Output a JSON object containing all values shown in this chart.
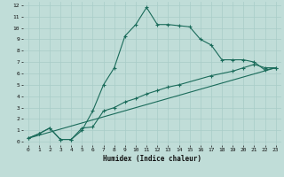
{
  "xlabel": "Humidex (Indice chaleur)",
  "bg_color": "#c0ddd8",
  "grid_color": "#a8ccc8",
  "line_color": "#1a6b5a",
  "xlim": [
    -0.5,
    23.5
  ],
  "ylim": [
    -0.3,
    12.3
  ],
  "xticks": [
    0,
    1,
    2,
    3,
    4,
    5,
    6,
    7,
    8,
    9,
    10,
    11,
    12,
    13,
    14,
    15,
    16,
    17,
    18,
    19,
    20,
    21,
    22,
    23
  ],
  "yticks": [
    0,
    1,
    2,
    3,
    4,
    5,
    6,
    7,
    8,
    9,
    10,
    11,
    12
  ],
  "curve1_x": [
    0,
    1,
    2,
    3,
    4,
    5,
    6,
    7,
    8,
    9,
    10,
    11,
    12,
    13,
    14,
    15,
    16,
    17,
    18,
    19,
    20,
    21,
    22,
    23
  ],
  "curve1_y": [
    0.3,
    0.7,
    1.2,
    0.2,
    0.2,
    1.0,
    2.7,
    5.0,
    6.5,
    9.3,
    10.3,
    11.8,
    10.3,
    10.3,
    10.2,
    10.1,
    9.0,
    8.5,
    7.2,
    7.2,
    7.2,
    7.0,
    6.3,
    6.5
  ],
  "curve2_x": [
    0,
    1,
    2,
    3,
    4,
    5,
    6,
    7,
    8,
    9,
    10,
    11,
    12,
    13,
    14,
    17,
    19,
    20,
    21,
    22,
    23
  ],
  "curve2_y": [
    0.3,
    0.7,
    1.2,
    0.2,
    0.2,
    1.2,
    1.3,
    2.7,
    3.0,
    3.5,
    3.8,
    4.2,
    4.5,
    4.8,
    5.0,
    5.8,
    6.2,
    6.5,
    6.8,
    6.5,
    6.5
  ],
  "curve3_x": [
    0,
    23
  ],
  "curve3_y": [
    0.3,
    6.5
  ]
}
